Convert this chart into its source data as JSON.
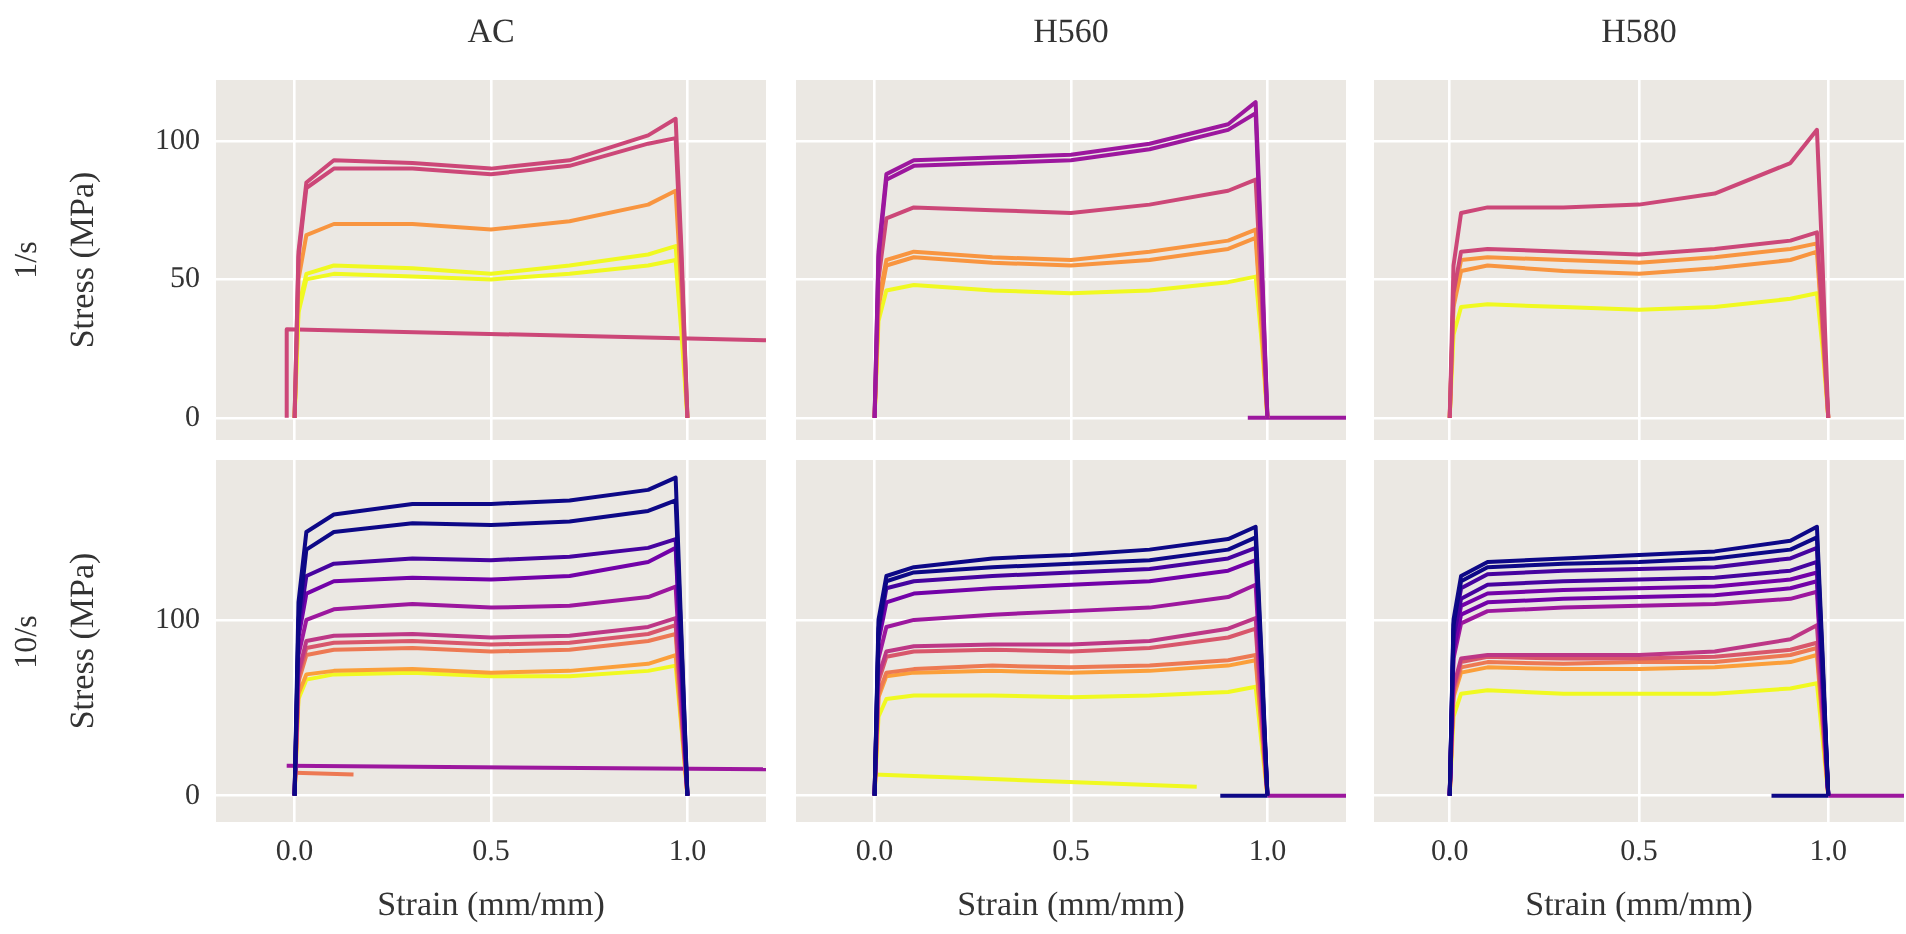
{
  "chart_data": [
    {
      "type": "line",
      "title": "AC",
      "ylabel": "Stress (MPa)",
      "annotations": [
        "1/s"
      ],
      "xlim": [
        -0.2,
        1.2
      ],
      "ylim": [
        -8,
        122
      ],
      "xticks": [
        0,
        0.5,
        1
      ],
      "yticks": [
        0,
        50,
        100
      ],
      "tick_labels": "y",
      "grid": true,
      "marker": "none",
      "x": [
        0,
        0.01,
        0.03,
        0.1,
        0.3,
        0.5,
        0.7,
        0.9,
        0.97,
        0.985,
        1.0
      ],
      "series": [
        {
          "color": "#cc4778",
          "values": [
            0,
            60,
            85,
            93,
            92,
            90,
            93,
            102,
            108,
            60,
            0
          ]
        },
        {
          "color": "#cc4778",
          "values": [
            0,
            58,
            83,
            90,
            90,
            88,
            91,
            99,
            101,
            55,
            0
          ]
        },
        {
          "color": "#f89540",
          "values": [
            0,
            50,
            66,
            70,
            70,
            68,
            71,
            77,
            82,
            45,
            0
          ]
        },
        {
          "color": "#f0f921",
          "values": [
            0,
            40,
            52,
            55,
            54,
            52,
            55,
            59,
            62,
            35,
            0
          ]
        },
        {
          "color": "#f0f921",
          "values": [
            0,
            38,
            50,
            52,
            51,
            50,
            52,
            55,
            57,
            30,
            0
          ]
        },
        {
          "color": "#cc4778",
          "x": [
            -0.02,
            -0.02,
            1.2
          ],
          "values": [
            0,
            32,
            28
          ]
        }
      ]
    },
    {
      "type": "line",
      "title": "H560",
      "xlim": [
        -0.2,
        1.2
      ],
      "ylim": [
        -8,
        122
      ],
      "xticks": [
        0,
        0.5,
        1
      ],
      "yticks": [
        0,
        50,
        100
      ],
      "tick_labels": false,
      "grid": true,
      "marker": "none",
      "x": [
        0,
        0.01,
        0.03,
        0.1,
        0.3,
        0.5,
        0.7,
        0.9,
        0.97,
        0.985,
        1.0
      ],
      "series": [
        {
          "color": "#9c179e",
          "values": [
            0,
            60,
            88,
            93,
            94,
            95,
            99,
            106,
            114,
            60,
            0
          ]
        },
        {
          "color": "#9c179e",
          "values": [
            0,
            58,
            86,
            91,
            92,
            93,
            97,
            104,
            110,
            55,
            0
          ]
        },
        {
          "color": "#cc4778",
          "values": [
            0,
            50,
            72,
            76,
            75,
            74,
            77,
            82,
            86,
            45,
            0
          ]
        },
        {
          "color": "#f89540",
          "values": [
            0,
            42,
            57,
            60,
            58,
            57,
            60,
            64,
            68,
            35,
            0
          ]
        },
        {
          "color": "#f89540",
          "values": [
            0,
            40,
            55,
            58,
            56,
            55,
            57,
            61,
            65,
            33,
            0
          ]
        },
        {
          "color": "#f0f921",
          "values": [
            0,
            35,
            46,
            48,
            46,
            45,
            46,
            49,
            51,
            28,
            0
          ]
        },
        {
          "color": "#9c179e",
          "x": [
            0.95,
            1.2
          ],
          "values": [
            0,
            0
          ]
        }
      ]
    },
    {
      "type": "line",
      "title": "H580",
      "xlim": [
        -0.2,
        1.2
      ],
      "ylim": [
        -8,
        122
      ],
      "xticks": [
        0,
        0.5,
        1
      ],
      "yticks": [
        0,
        50,
        100
      ],
      "tick_labels": false,
      "grid": true,
      "marker": "none",
      "x": [
        0,
        0.01,
        0.03,
        0.1,
        0.3,
        0.5,
        0.7,
        0.9,
        0.97,
        0.985,
        1.0
      ],
      "series": [
        {
          "color": "#cc4778",
          "values": [
            0,
            55,
            74,
            76,
            76,
            77,
            81,
            92,
            104,
            55,
            0
          ]
        },
        {
          "color": "#cc4778",
          "values": [
            0,
            45,
            60,
            61,
            60,
            59,
            61,
            64,
            67,
            35,
            0
          ]
        },
        {
          "color": "#f89540",
          "values": [
            0,
            43,
            57,
            58,
            57,
            56,
            58,
            61,
            63,
            33,
            0
          ]
        },
        {
          "color": "#f89540",
          "values": [
            0,
            40,
            53,
            55,
            53,
            52,
            54,
            57,
            60,
            30,
            0
          ]
        },
        {
          "color": "#f0f921",
          "values": [
            0,
            30,
            40,
            41,
            40,
            39,
            40,
            43,
            45,
            25,
            0
          ]
        }
      ]
    },
    {
      "type": "line",
      "xlabel": "Strain (mm/mm)",
      "ylabel": "Stress (MPa)",
      "annotations": [
        "10/s"
      ],
      "xlim": [
        -0.2,
        1.2
      ],
      "ylim": [
        -15,
        191
      ],
      "xticks": [
        {
          "value": 0,
          "label": "0.0"
        },
        {
          "value": 0.5,
          "label": "0.5"
        },
        {
          "value": 1,
          "label": "1.0"
        }
      ],
      "yticks": [
        0,
        100
      ],
      "grid": true,
      "marker": "none",
      "x": [
        0,
        0.01,
        0.03,
        0.1,
        0.3,
        0.5,
        0.7,
        0.9,
        0.97,
        0.985,
        1.0
      ],
      "series": [
        {
          "color": "#0d0887",
          "values": [
            0,
            110,
            150,
            160,
            166,
            166,
            168,
            174,
            181,
            90,
            0
          ]
        },
        {
          "color": "#0d0887",
          "values": [
            0,
            100,
            140,
            150,
            155,
            154,
            156,
            162,
            168,
            85,
            0
          ]
        },
        {
          "color": "#46039f",
          "values": [
            0,
            95,
            125,
            132,
            135,
            134,
            136,
            141,
            146,
            75,
            0
          ]
        },
        {
          "color": "#7201a8",
          "values": [
            0,
            90,
            115,
            122,
            124,
            123,
            125,
            133,
            141,
            70,
            0
          ]
        },
        {
          "color": "#9c179e",
          "values": [
            0,
            80,
            100,
            106,
            109,
            107,
            108,
            113,
            119,
            60,
            0
          ]
        },
        {
          "color": "#bd3786",
          "values": [
            0,
            70,
            88,
            91,
            92,
            90,
            91,
            96,
            101,
            50,
            0
          ]
        },
        {
          "color": "#d8576b",
          "values": [
            0,
            68,
            84,
            87,
            88,
            86,
            87,
            92,
            97,
            48,
            0
          ]
        },
        {
          "color": "#ed7953",
          "values": [
            0,
            65,
            80,
            83,
            84,
            82,
            83,
            88,
            92,
            46,
            0
          ]
        },
        {
          "color": "#fb9f3a",
          "values": [
            0,
            58,
            69,
            71,
            72,
            70,
            71,
            75,
            80,
            40,
            0
          ]
        },
        {
          "color": "#f0f921",
          "values": [
            0,
            55,
            66,
            69,
            70,
            68,
            68,
            71,
            74,
            38,
            0
          ]
        },
        {
          "color": "#9c179e",
          "x": [
            -0.02,
            1.2
          ],
          "values": [
            17,
            15
          ]
        },
        {
          "color": "#ed7953",
          "x": [
            0,
            0.15
          ],
          "values": [
            13,
            12
          ]
        }
      ]
    },
    {
      "type": "line",
      "xlabel": "Strain (mm/mm)",
      "xlim": [
        -0.2,
        1.2
      ],
      "ylim": [
        -15,
        191
      ],
      "xticks": [
        {
          "value": 0,
          "label": "0.0"
        },
        {
          "value": 0.5,
          "label": "0.5"
        },
        {
          "value": 1,
          "label": "1.0"
        }
      ],
      "yticks": [
        0,
        100
      ],
      "tick_labels": "x",
      "grid": true,
      "marker": "none",
      "x": [
        0,
        0.01,
        0.03,
        0.1,
        0.3,
        0.5,
        0.7,
        0.9,
        0.97,
        0.985,
        1.0
      ],
      "series": [
        {
          "color": "#0d0887",
          "values": [
            0,
            100,
            125,
            130,
            135,
            137,
            140,
            146,
            153,
            80,
            0
          ]
        },
        {
          "color": "#0d0887",
          "values": [
            0,
            95,
            122,
            127,
            130,
            132,
            134,
            140,
            147,
            75,
            0
          ]
        },
        {
          "color": "#46039f",
          "values": [
            0,
            92,
            118,
            122,
            125,
            127,
            129,
            135,
            141,
            70,
            0
          ]
        },
        {
          "color": "#7201a8",
          "values": [
            0,
            88,
            110,
            115,
            118,
            120,
            122,
            128,
            134,
            68,
            0
          ]
        },
        {
          "color": "#9c179e",
          "values": [
            0,
            78,
            96,
            100,
            103,
            105,
            107,
            113,
            120,
            60,
            0
          ]
        },
        {
          "color": "#bd3786",
          "values": [
            0,
            68,
            82,
            85,
            86,
            86,
            88,
            95,
            101,
            50,
            0
          ]
        },
        {
          "color": "#d8576b",
          "values": [
            0,
            65,
            79,
            82,
            83,
            82,
            84,
            90,
            95,
            48,
            0
          ]
        },
        {
          "color": "#ed7953",
          "values": [
            0,
            58,
            70,
            72,
            74,
            73,
            74,
            77,
            80,
            40,
            0
          ]
        },
        {
          "color": "#fb9f3a",
          "values": [
            0,
            56,
            68,
            70,
            71,
            70,
            71,
            74,
            77,
            38,
            0
          ]
        },
        {
          "color": "#f0f921",
          "values": [
            0,
            45,
            55,
            57,
            57,
            56,
            57,
            59,
            62,
            30,
            0
          ]
        },
        {
          "color": "#f0f921",
          "x": [
            0,
            0.82
          ],
          "values": [
            12,
            5
          ]
        },
        {
          "color": "#0d0887",
          "x": [
            0.88,
            1.0
          ],
          "values": [
            0,
            0
          ]
        },
        {
          "color": "#9c179e",
          "x": [
            1.0,
            1.2
          ],
          "values": [
            0,
            0
          ]
        }
      ]
    },
    {
      "type": "line",
      "xlabel": "Strain (mm/mm)",
      "xlim": [
        -0.2,
        1.2
      ],
      "ylim": [
        -15,
        191
      ],
      "xticks": [
        {
          "value": 0,
          "label": "0.0"
        },
        {
          "value": 0.5,
          "label": "0.5"
        },
        {
          "value": 1,
          "label": "1.0"
        }
      ],
      "yticks": [
        0,
        100
      ],
      "tick_labels": "x",
      "grid": true,
      "marker": "none",
      "x": [
        0,
        0.01,
        0.03,
        0.1,
        0.3,
        0.5,
        0.7,
        0.9,
        0.97,
        0.985,
        1.0
      ],
      "series": [
        {
          "color": "#0d0887",
          "values": [
            0,
            100,
            125,
            133,
            135,
            137,
            139,
            145,
            153,
            80,
            0
          ]
        },
        {
          "color": "#0d0887",
          "values": [
            0,
            97,
            122,
            130,
            132,
            133,
            135,
            140,
            147,
            75,
            0
          ]
        },
        {
          "color": "#46039f",
          "values": [
            0,
            94,
            118,
            126,
            128,
            129,
            130,
            135,
            141,
            72,
            0
          ]
        },
        {
          "color": "#46039f",
          "values": [
            0,
            90,
            112,
            120,
            122,
            123,
            124,
            128,
            133,
            68,
            0
          ]
        },
        {
          "color": "#7201a8",
          "values": [
            0,
            86,
            108,
            115,
            117,
            118,
            119,
            123,
            127,
            65,
            0
          ]
        },
        {
          "color": "#7201a8",
          "values": [
            0,
            82,
            103,
            110,
            112,
            113,
            114,
            118,
            122,
            62,
            0
          ]
        },
        {
          "color": "#9c179e",
          "values": [
            0,
            78,
            98,
            105,
            107,
            108,
            109,
            112,
            116,
            60,
            0
          ]
        },
        {
          "color": "#bd3786",
          "values": [
            0,
            62,
            78,
            80,
            80,
            80,
            82,
            89,
            97,
            50,
            0
          ]
        },
        {
          "color": "#d8576b",
          "values": [
            0,
            60,
            76,
            79,
            78,
            78,
            79,
            83,
            87,
            45,
            0
          ]
        },
        {
          "color": "#ed7953",
          "values": [
            0,
            58,
            73,
            76,
            75,
            76,
            76,
            80,
            84,
            42,
            0
          ]
        },
        {
          "color": "#fb9f3a",
          "values": [
            0,
            56,
            70,
            73,
            72,
            72,
            73,
            76,
            80,
            40,
            0
          ]
        },
        {
          "color": "#f0f921",
          "values": [
            0,
            45,
            58,
            60,
            58,
            58,
            58,
            61,
            64,
            32,
            0
          ]
        },
        {
          "color": "#0d0887",
          "x": [
            0.85,
            1.0
          ],
          "values": [
            0,
            0
          ]
        },
        {
          "color": "#9c179e",
          "x": [
            1.0,
            1.2
          ],
          "values": [
            0,
            0
          ]
        }
      ]
    }
  ]
}
